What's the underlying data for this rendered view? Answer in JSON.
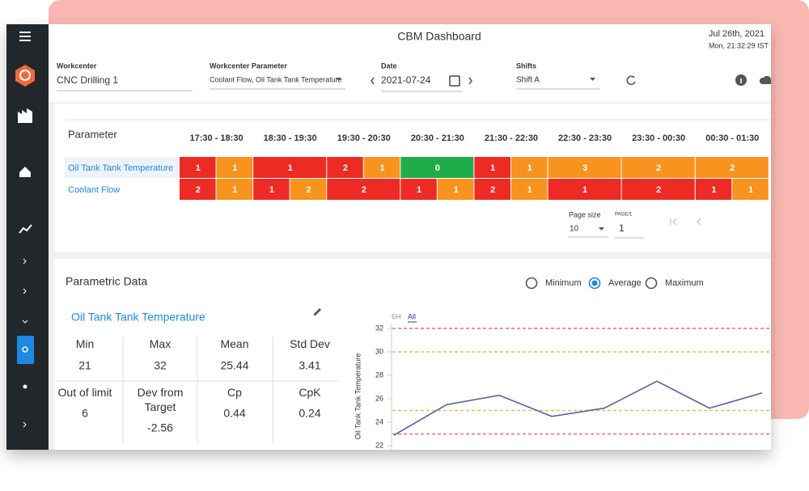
{
  "header": {
    "title": "CBM Dashboard",
    "date": "Jul 26th, 2021",
    "time": "Mon, 21:32:29 IST"
  },
  "filters": [
    {
      "label": "Workcenter",
      "value": "CNC Drilling 1"
    },
    {
      "label": "Workcenter Parameter",
      "value": "Coolant Flow, Oil Tank Tank Temperature"
    },
    {
      "label": "Date",
      "value": "2021-07-24"
    },
    {
      "label": "Shifts",
      "value": "Shift A"
    }
  ],
  "grid": {
    "header": "Parameter",
    "slots": [
      "17:30 - 18:30",
      "18:30 - 19:30",
      "19:30 - 20:30",
      "20:30 - 21:30",
      "21:30 - 22:30",
      "22:30 - 23:30",
      "23:30 - 00:30",
      "00:30 - 01:30"
    ],
    "rows": [
      {
        "name": "Oil Tank Tank Temperature",
        "cells": [
          [
            {
              "value": 1,
              "color": "#ee2a24"
            },
            {
              "value": 1,
              "color": "#f7931e"
            }
          ],
          [
            {
              "value": 1,
              "color": "#ee2a24"
            }
          ],
          [
            {
              "value": 2,
              "color": "#ee2a24"
            },
            {
              "value": 1,
              "color": "#f7931e"
            }
          ],
          [
            {
              "value": 0,
              "color": "#1fad4c"
            }
          ],
          [
            {
              "value": 1,
              "color": "#ee2a24"
            },
            {
              "value": 1,
              "color": "#f7931e"
            }
          ],
          [
            {
              "value": 3,
              "color": "#f7931e"
            }
          ],
          [
            {
              "value": 2,
              "color": "#f7931e"
            }
          ],
          [
            {
              "value": 2,
              "color": "#f7931e"
            }
          ]
        ]
      },
      {
        "name": "Coolant Flow",
        "cells": [
          [
            {
              "value": 2,
              "color": "#ee2a24"
            },
            {
              "value": 1,
              "color": "#f7931e"
            }
          ],
          [
            {
              "value": 1,
              "color": "#ee2a24"
            },
            {
              "value": 2,
              "color": "#f7931e"
            }
          ],
          [
            {
              "value": 2,
              "color": "#ee2a24"
            }
          ],
          [
            {
              "value": 1,
              "color": "#ee2a24"
            },
            {
              "value": 1,
              "color": "#f7931e"
            }
          ],
          [
            {
              "value": 2,
              "color": "#ee2a24"
            },
            {
              "value": 1,
              "color": "#f7931e"
            }
          ],
          [
            {
              "value": 1,
              "color": "#ee2a24"
            }
          ],
          [
            {
              "value": 2,
              "color": "#ee2a24"
            }
          ],
          [
            {
              "value": 1,
              "color": "#ee2a24"
            },
            {
              "value": 1,
              "color": "#f7931e"
            }
          ]
        ]
      }
    ]
  },
  "pagination": {
    "size_label": "Page size",
    "size": 10,
    "page_label": "PAGE/1",
    "page": 1
  },
  "parametric": {
    "title": "Parametric Data",
    "options": [
      {
        "label": "Minimum",
        "selected": false
      },
      {
        "label": "Average",
        "selected": true
      },
      {
        "label": "Maximum",
        "selected": false
      }
    ],
    "parameter": "Oil Tank Tank Temperature",
    "stats": [
      {
        "label": "Min",
        "value": 21
      },
      {
        "label": "Max",
        "value": 32
      },
      {
        "label": "Mean",
        "value": 25.44
      },
      {
        "label": "Std Dev",
        "value": 3.41
      },
      {
        "label": "Out of limit",
        "value": 6
      },
      {
        "label": "Dev from Target",
        "value": -2.56
      },
      {
        "label": "Cp",
        "value": 0.44
      },
      {
        "label": "CpK",
        "value": 0.24
      }
    ]
  },
  "chart_data": {
    "type": "line",
    "ranges": [
      "6H",
      "All"
    ],
    "active_range": 1,
    "ylabel": "Oil Tank Tank Temperature",
    "ylim": [
      22,
      32
    ],
    "yticks": [
      22,
      24,
      26,
      28,
      30,
      32
    ],
    "color": "#5b5ea6",
    "values": [
      22.9,
      25.5,
      26.3,
      24.5,
      25.2,
      27.5,
      25.2,
      26.5
    ],
    "limits": [
      {
        "value": 32,
        "color": "#ef6a6a"
      },
      {
        "value": 30,
        "color": "#f2b84b"
      },
      {
        "value": 25,
        "color": "#f2b84b"
      },
      {
        "value": 23,
        "color": "#ef6a6a"
      }
    ]
  }
}
